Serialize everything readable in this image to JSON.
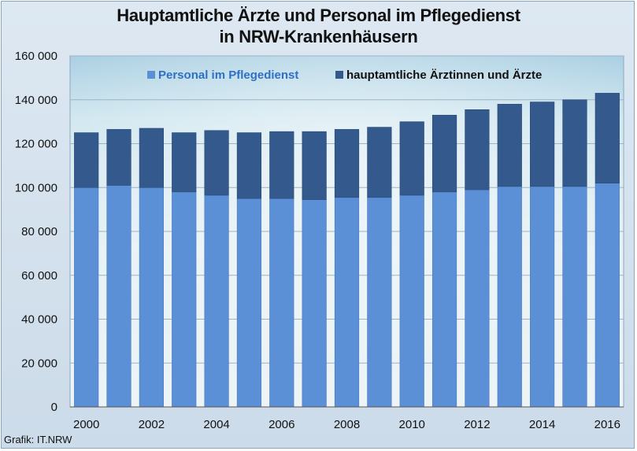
{
  "title_line1": "Hauptamtliche Ärzte und Personal im Pflegedienst",
  "title_line2": "in NRW-Krankenhäusern",
  "source": "Grafik: IT.NRW",
  "colors": {
    "pflege": "#5b8fd6",
    "aerzte": "#34598c",
    "legend_pflege_text": "#2f6fc4",
    "legend_aerzte_text": "#111111"
  },
  "chart_data": {
    "type": "bar",
    "stacked": true,
    "title": "Hauptamtliche Ärzte und Personal im Pflegedienst in NRW-Krankenhäusern",
    "categories": [
      2000,
      2001,
      2002,
      2003,
      2004,
      2005,
      2006,
      2007,
      2008,
      2009,
      2010,
      2011,
      2012,
      2013,
      2014,
      2015,
      2016
    ],
    "x_tick_labels": [
      "2000",
      "2002",
      "2004",
      "2006",
      "2008",
      "2010",
      "2012",
      "2014",
      "2016"
    ],
    "y_tick_labels": [
      "0",
      "20 000",
      "40 000",
      "60 000",
      "80 000",
      "100 000",
      "120 000",
      "140 000",
      "160 000"
    ],
    "ylim": [
      0,
      160000
    ],
    "grid": true,
    "legend_position": "top",
    "series": [
      {
        "name": "Personal im Pflegedienst",
        "values": [
          100000,
          101000,
          100000,
          98000,
          96500,
          95000,
          95000,
          94500,
          95500,
          95500,
          96500,
          98000,
          99000,
          100500,
          100500,
          100500,
          102000
        ]
      },
      {
        "name": "hauptamtliche Ärztinnen und Ärzte",
        "values": [
          25000,
          25500,
          27000,
          27000,
          29500,
          30000,
          30500,
          31000,
          31000,
          32000,
          33500,
          35000,
          36500,
          37500,
          38500,
          39500,
          41000
        ]
      }
    ]
  }
}
